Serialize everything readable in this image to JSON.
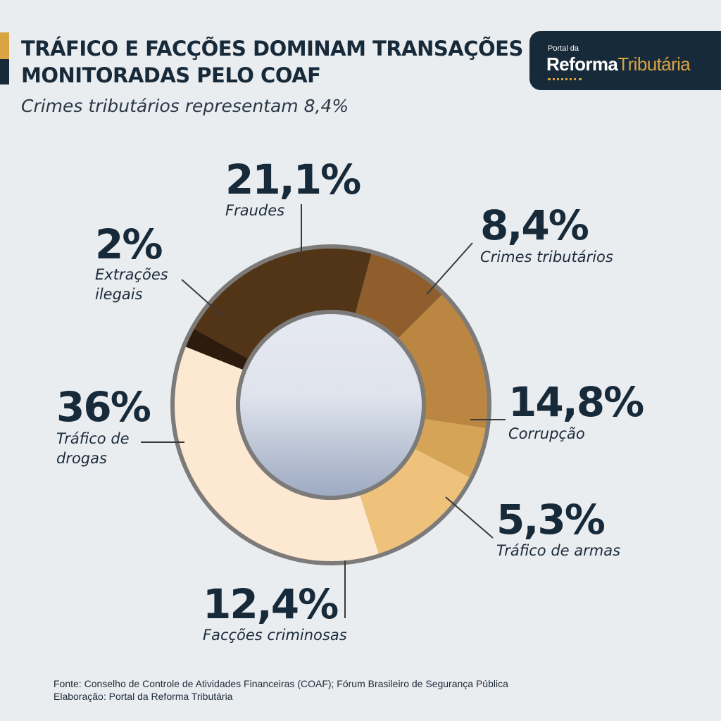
{
  "title": {
    "line1": "TRÁFICO E FACÇÕES DOMINAM TRANSAÇÕES",
    "line2": "MONITORADAS PELO COAF"
  },
  "subtitle": "Crimes tributários representam 8,4%",
  "brand": {
    "small": "Portal da",
    "reforma": "Reforma",
    "tributaria": "Tributária"
  },
  "colors": {
    "background": "#eaedf0",
    "navy": "#172a3a",
    "gold": "#d9a441"
  },
  "chart_data": {
    "type": "pie",
    "style": "donut",
    "unit": "%",
    "slices": [
      {
        "label": "Fraudes",
        "value": 21.1,
        "display": "21,1%",
        "color": "#523417"
      },
      {
        "label": "Crimes tributários",
        "value": 8.4,
        "display": "8,4%",
        "color": "#8f5e2c"
      },
      {
        "label": "Corrupção",
        "value": 14.8,
        "display": "14,8%",
        "color": "#bb8641"
      },
      {
        "label": "Tráfico de armas",
        "value": 5.3,
        "display": "5,3%",
        "color": "#d6a457"
      },
      {
        "label": "Facções criminosas",
        "value": 12.4,
        "display": "12,4%",
        "color": "#eec27a"
      },
      {
        "label": "Tráfico de drogas",
        "value": 36,
        "display": "36%",
        "color": "#fde9d2"
      },
      {
        "label": "Extrações ilegais",
        "value": 2,
        "display": "2%",
        "color": "#2d1c0e"
      }
    ]
  },
  "footer": {
    "source": "Fonte: Conselho de Controle de Atividades Financeiras (COAF); Fórum Brasileiro de Segurança Pública",
    "credit": "Elaboração: Portal da Reforma Tributária"
  }
}
